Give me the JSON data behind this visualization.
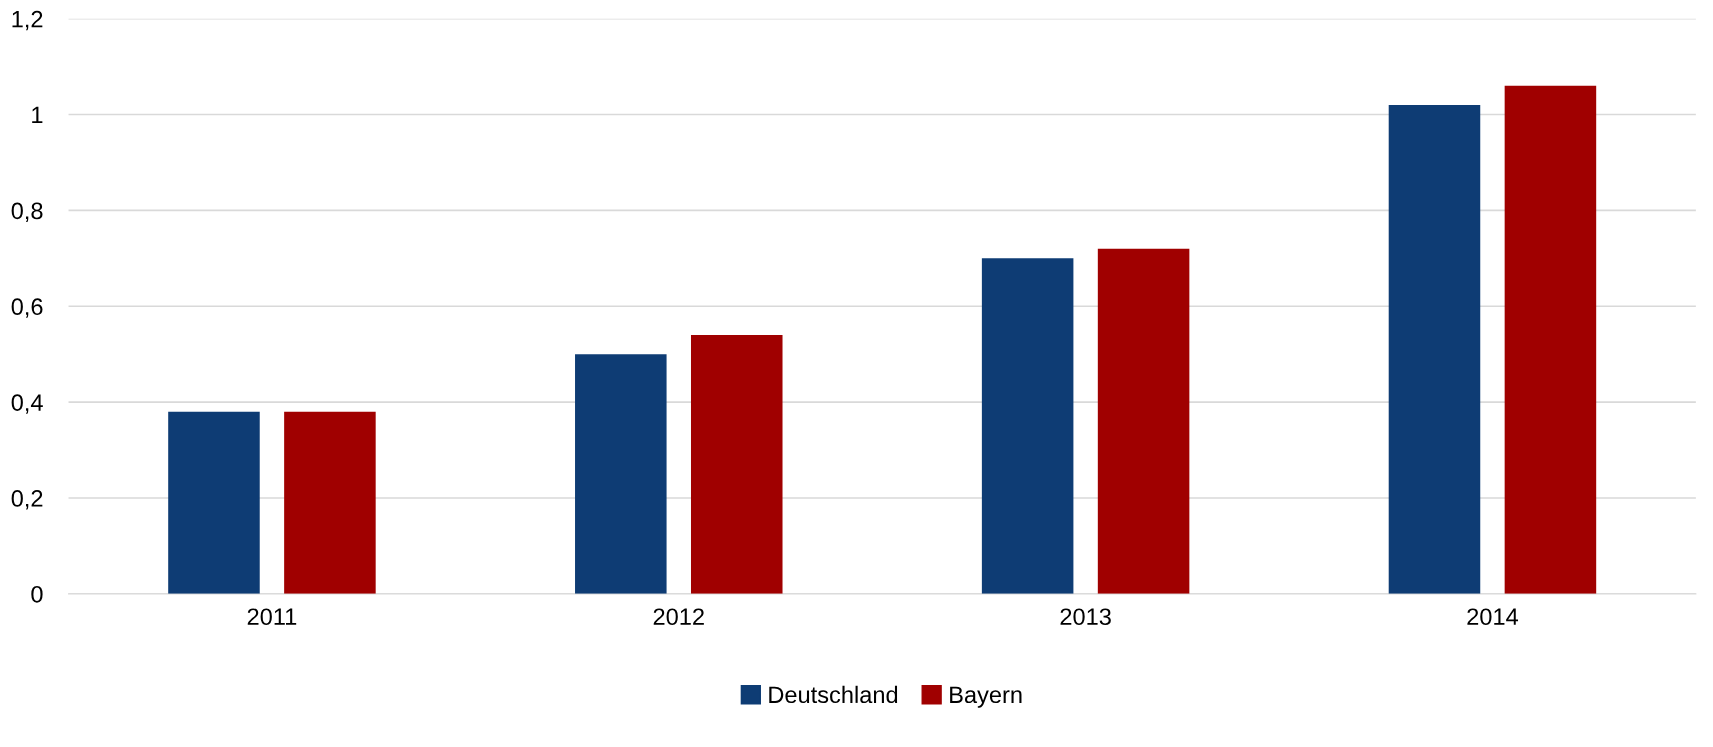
{
  "chart_data": {
    "type": "bar",
    "categories": [
      "2011",
      "2012",
      "2013",
      "2014"
    ],
    "series": [
      {
        "name": "Deutschland",
        "color": "#0e3c74",
        "values": [
          0.38,
          0.5,
          0.7,
          1.02
        ]
      },
      {
        "name": "Bayern",
        "color": "#a00000",
        "values": [
          0.38,
          0.54,
          0.72,
          1.06
        ]
      }
    ],
    "ylim": [
      0,
      1.2
    ],
    "yticks": [
      0,
      {
        "value": 0.2,
        "label": "0,2"
      },
      {
        "value": 0.4,
        "label": "0,4"
      },
      {
        "value": 0.6,
        "label": "0,6"
      },
      {
        "value": 0.8,
        "label": "0,8"
      },
      1,
      {
        "value": 1.2,
        "label": "1,2"
      }
    ],
    "grid": "y",
    "legend": "bottom"
  }
}
